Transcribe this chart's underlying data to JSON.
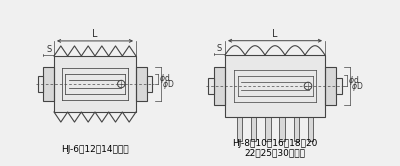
{
  "bg_color": "#f0f0f0",
  "line_color": "#444444",
  "dim_color": "#333333",
  "fill_color": "#d8d8d8",
  "fill_light": "#e8e8e8",
  "label1": "HJ-6・12・14ブーツ",
  "label2_line1": "HJ-8・10・16・18・20",
  "label2_line2": "22・25・30ブーツ",
  "label_L": "L",
  "label_S": "S",
  "label_phid": "φd",
  "label_phiD": "φD"
}
